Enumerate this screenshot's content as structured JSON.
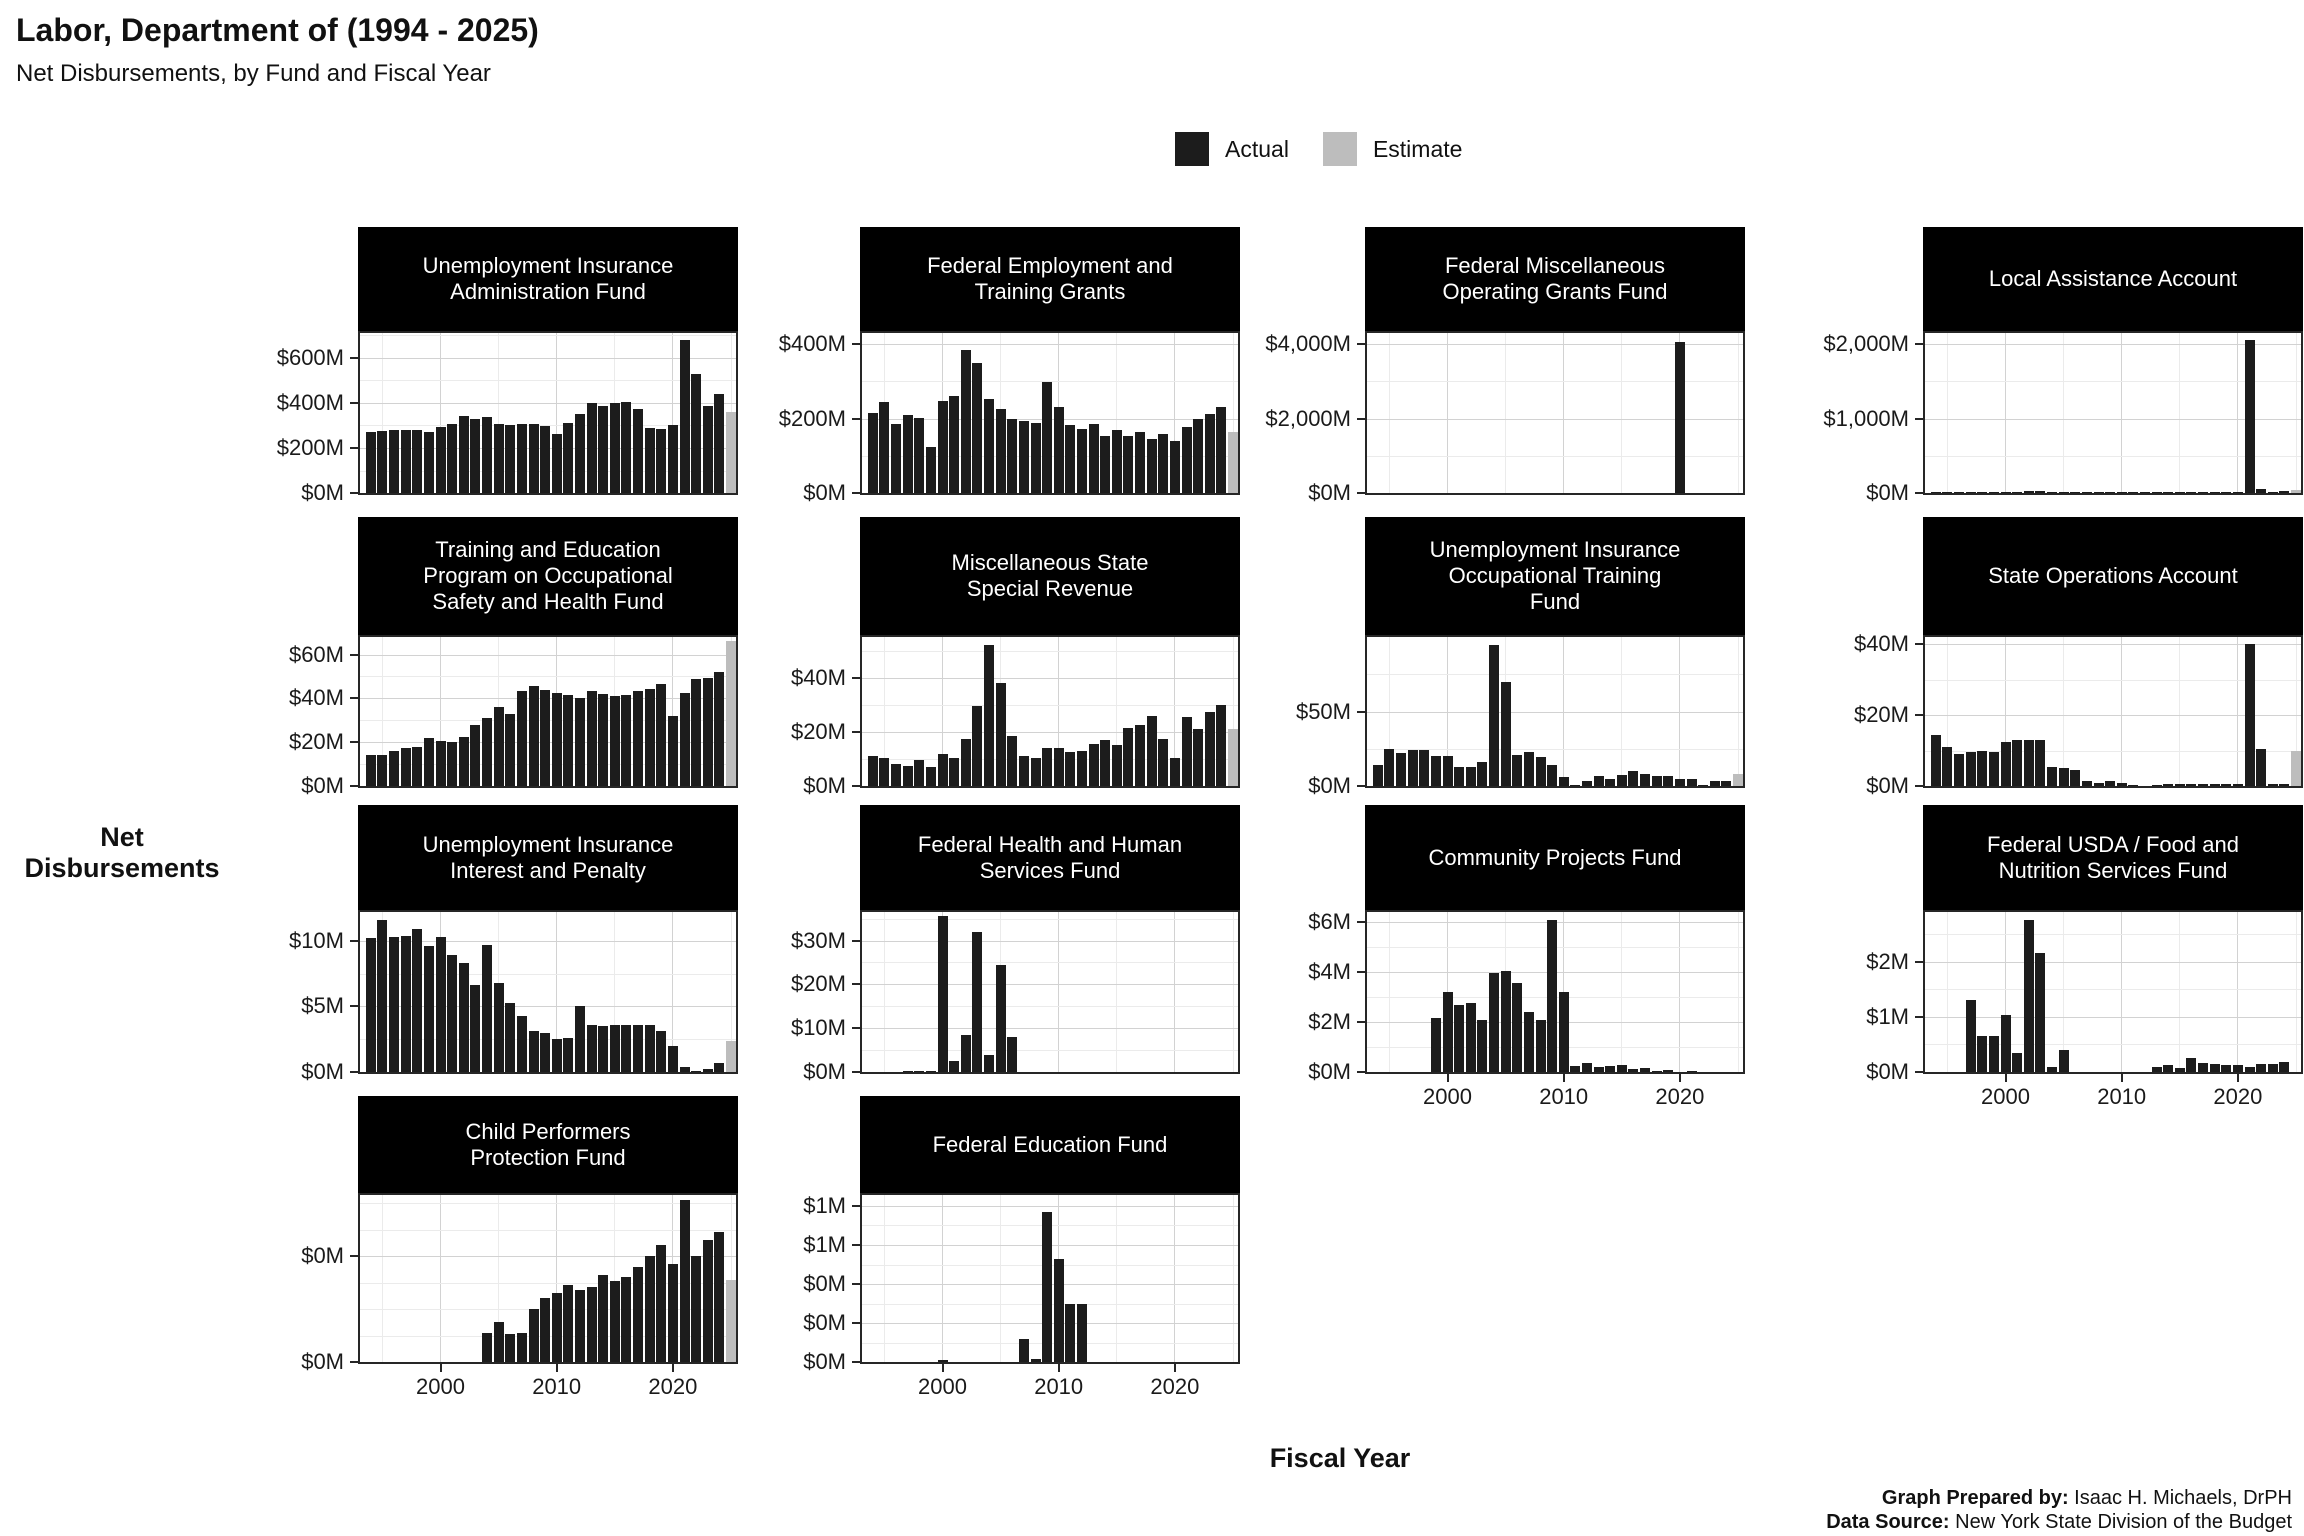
{
  "header": {
    "title": "Labor, Department of (1994 - 2025)",
    "subtitle": "Net Disbursements, by Fund and Fiscal Year"
  },
  "legend": {
    "items": [
      {
        "label": "Actual",
        "color": "#1C1C1C"
      },
      {
        "label": "Estimate",
        "color": "#BDBDBD"
      }
    ]
  },
  "axes": {
    "y_label": "Net Disbursements",
    "x_label": "Fiscal Year"
  },
  "footer": {
    "prepared_by_label": "Graph Prepared by:",
    "prepared_by": " Isaac H. Michaels, DrPH",
    "source_label": "Data Source:",
    "source": " New York State Division of the Budget"
  },
  "x_axis": {
    "start": 1994,
    "end": 2025,
    "ticks": [
      2000,
      2010,
      2020
    ]
  },
  "chart_data": [
    {
      "id": "ui-admin",
      "type": "bar",
      "row": 0,
      "col": 0,
      "title_lines": [
        "Unemployment Insurance",
        "Administration Fund"
      ],
      "y_max": 710,
      "minor": 100,
      "estimate_year": 2025,
      "show_x_labels": false,
      "y_ticks": [
        {
          "v": 0,
          "label": "$0M"
        },
        {
          "v": 200,
          "label": "$200M"
        },
        {
          "v": 400,
          "label": "$400M"
        },
        {
          "v": 600,
          "label": "$600M"
        }
      ],
      "series": {
        "1994": 270,
        "1995": 275,
        "1996": 280,
        "1997": 280,
        "1998": 278,
        "1999": 272,
        "2000": 292,
        "2001": 308,
        "2002": 340,
        "2003": 330,
        "2004": 338,
        "2005": 305,
        "2006": 300,
        "2007": 305,
        "2008": 305,
        "2009": 298,
        "2010": 262,
        "2011": 310,
        "2012": 352,
        "2013": 400,
        "2014": 388,
        "2015": 400,
        "2016": 402,
        "2017": 372,
        "2018": 290,
        "2019": 285,
        "2020": 302,
        "2021": 680,
        "2022": 530,
        "2023": 385,
        "2024": 440,
        "2025": 360
      }
    },
    {
      "id": "fed-employment",
      "type": "bar",
      "row": 0,
      "col": 1,
      "title_lines": [
        "Federal Employment and",
        "Training Grants"
      ],
      "y_max": 430,
      "minor": 100,
      "estimate_year": 2025,
      "show_x_labels": false,
      "y_ticks": [
        {
          "v": 0,
          "label": "$0M"
        },
        {
          "v": 200,
          "label": "$200M"
        },
        {
          "v": 400,
          "label": "$400M"
        }
      ],
      "series": {
        "1994": 215,
        "1995": 245,
        "1996": 185,
        "1997": 210,
        "1998": 203,
        "1999": 125,
        "2000": 248,
        "2001": 260,
        "2002": 385,
        "2003": 350,
        "2004": 253,
        "2005": 225,
        "2006": 198,
        "2007": 193,
        "2008": 188,
        "2009": 298,
        "2010": 230,
        "2011": 183,
        "2012": 172,
        "2013": 185,
        "2014": 153,
        "2015": 170,
        "2016": 152,
        "2017": 165,
        "2018": 145,
        "2019": 160,
        "2020": 140,
        "2021": 178,
        "2022": 198,
        "2023": 213,
        "2024": 230,
        "2025": 163
      }
    },
    {
      "id": "fed-misc-operating",
      "type": "bar",
      "row": 0,
      "col": 2,
      "title_lines": [
        "Federal Miscellaneous",
        "Operating Grants Fund"
      ],
      "y_max": 4300,
      "minor": 1000,
      "estimate_year": null,
      "show_x_labels": false,
      "y_ticks": [
        {
          "v": 0,
          "label": "$0M"
        },
        {
          "v": 2000,
          "label": "$2,000M"
        },
        {
          "v": 4000,
          "label": "$4,000M"
        }
      ],
      "series": {
        "2020": 4050
      }
    },
    {
      "id": "local-assistance",
      "type": "bar",
      "row": 0,
      "col": 3,
      "title_lines": [
        "Local Assistance Account"
      ],
      "y_max": 2150,
      "minor": 500,
      "estimate_year": 2025,
      "show_x_labels": false,
      "y_ticks": [
        {
          "v": 0,
          "label": "$0M"
        },
        {
          "v": 1000,
          "label": "$1,000M"
        },
        {
          "v": 2000,
          "label": "$2,000M"
        }
      ],
      "series": {
        "1994": 4,
        "1995": 4,
        "1996": 4,
        "1997": 4,
        "1998": 4,
        "1999": 4,
        "2000": 5,
        "2001": 8,
        "2002": 25,
        "2003": 33,
        "2004": 6,
        "2005": 5,
        "2006": 5,
        "2007": 5,
        "2008": 5,
        "2009": 5,
        "2010": 4,
        "2011": 4,
        "2012": 4,
        "2013": 4,
        "2014": 4,
        "2015": 4,
        "2016": 4,
        "2017": 4,
        "2018": 4,
        "2019": 12,
        "2020": 8,
        "2021": 2050,
        "2022": 60,
        "2023": 18,
        "2024": 22,
        "2025": 45
      }
    },
    {
      "id": "osh-training",
      "type": "bar",
      "row": 1,
      "col": 0,
      "title_lines": [
        "Training and Education",
        "Program on Occupational",
        "Safety and Health Fund"
      ],
      "y_max": 68,
      "minor": 10,
      "estimate_year": 2025,
      "show_x_labels": false,
      "y_ticks": [
        {
          "v": 0,
          "label": "$0M"
        },
        {
          "v": 20,
          "label": "$20M"
        },
        {
          "v": 40,
          "label": "$40M"
        },
        {
          "v": 60,
          "label": "$60M"
        }
      ],
      "series": {
        "1994": 14,
        "1995": 14,
        "1996": 16,
        "1997": 17.5,
        "1998": 18,
        "1999": 22,
        "2000": 20.5,
        "2001": 20,
        "2002": 22.5,
        "2003": 28,
        "2004": 31,
        "2005": 36,
        "2006": 33,
        "2007": 43.5,
        "2008": 45.5,
        "2009": 44,
        "2010": 42.5,
        "2011": 41.5,
        "2012": 40,
        "2013": 43.5,
        "2014": 42,
        "2015": 41,
        "2016": 41.5,
        "2017": 43.5,
        "2018": 44.5,
        "2019": 46.5,
        "2020": 32,
        "2021": 42.5,
        "2022": 49,
        "2023": 49.5,
        "2024": 52,
        "2025": 66
      }
    },
    {
      "id": "misc-state-special",
      "type": "bar",
      "row": 1,
      "col": 1,
      "title_lines": [
        "Miscellaneous State",
        "Special Revenue"
      ],
      "y_max": 55,
      "minor": 10,
      "estimate_year": 2025,
      "show_x_labels": false,
      "y_ticks": [
        {
          "v": 0,
          "label": "$0M"
        },
        {
          "v": 20,
          "label": "$20M"
        },
        {
          "v": 40,
          "label": "$40M"
        }
      ],
      "series": {
        "1994": 11,
        "1995": 10.5,
        "1996": 8,
        "1997": 7.5,
        "1998": 9.5,
        "1999": 7,
        "2000": 12,
        "2001": 10.5,
        "2002": 17.5,
        "2003": 29.5,
        "2004": 52,
        "2005": 38,
        "2006": 18.5,
        "2007": 11,
        "2008": 10.5,
        "2009": 14,
        "2010": 14,
        "2011": 12.5,
        "2012": 13,
        "2013": 15.5,
        "2014": 17,
        "2015": 15,
        "2016": 21.5,
        "2017": 22.5,
        "2018": 26,
        "2019": 17.5,
        "2020": 10.5,
        "2021": 25.5,
        "2022": 21,
        "2023": 27.5,
        "2024": 30,
        "2025": 21
      }
    },
    {
      "id": "ui-occupational-training",
      "type": "bar",
      "row": 1,
      "col": 2,
      "title_lines": [
        "Unemployment Insurance",
        "Occupational Training",
        "Fund"
      ],
      "y_max": 100,
      "minor": 25,
      "estimate_year": 2025,
      "show_x_labels": false,
      "y_ticks": [
        {
          "v": 0,
          "label": "$0M"
        },
        {
          "v": 50,
          "label": "$50M"
        }
      ],
      "series": {
        "1994": 14,
        "1995": 25,
        "1996": 22,
        "1997": 24,
        "1998": 24,
        "1999": 20,
        "2000": 20,
        "2001": 12.5,
        "2002": 13,
        "2003": 16,
        "2004": 95,
        "2005": 70,
        "2006": 21,
        "2007": 23,
        "2008": 19.5,
        "2009": 14,
        "2010": 6,
        "2011": 1,
        "2012": 3.5,
        "2013": 6.5,
        "2014": 4.5,
        "2015": 7.5,
        "2016": 10,
        "2017": 8,
        "2018": 6.5,
        "2019": 7,
        "2020": 5,
        "2021": 4.5,
        "2022": 1,
        "2023": 3.5,
        "2024": 3.5,
        "2025": 8
      }
    },
    {
      "id": "state-operations",
      "type": "bar",
      "row": 1,
      "col": 3,
      "title_lines": [
        "State Operations Account"
      ],
      "y_max": 42,
      "minor": 10,
      "estimate_year": 2025,
      "show_x_labels": false,
      "y_ticks": [
        {
          "v": 0,
          "label": "$0M"
        },
        {
          "v": 20,
          "label": "$20M"
        },
        {
          "v": 40,
          "label": "$40M"
        }
      ],
      "series": {
        "1994": 14.5,
        "1995": 11,
        "1996": 9,
        "1997": 9.5,
        "1998": 10,
        "1999": 9.5,
        "2000": 12.5,
        "2001": 13,
        "2002": 13,
        "2003": 13,
        "2004": 5.5,
        "2005": 5,
        "2006": 4.5,
        "2007": 1.5,
        "2008": 1,
        "2009": 1.5,
        "2010": 1,
        "2011": 0.3,
        "2013": 0.3,
        "2014": 0.5,
        "2015": 0.5,
        "2016": 0.5,
        "2017": 0.5,
        "2018": 0.5,
        "2019": 0.5,
        "2020": 0.5,
        "2021": 40,
        "2022": 10.5,
        "2023": 0.5,
        "2024": 0.5,
        "2025": 10
      }
    },
    {
      "id": "ui-interest-penalty",
      "type": "bar",
      "row": 2,
      "col": 0,
      "title_lines": [
        "Unemployment Insurance",
        "Interest and Penalty"
      ],
      "y_max": 12.2,
      "minor": 2.5,
      "estimate_year": 2025,
      "show_x_labels": false,
      "y_ticks": [
        {
          "v": 0,
          "label": "$0M"
        },
        {
          "v": 5,
          "label": "$5M"
        },
        {
          "v": 10,
          "label": "$10M"
        }
      ],
      "series": {
        "1994": 10.2,
        "1995": 11.6,
        "1996": 10.3,
        "1997": 10.4,
        "1998": 10.9,
        "1999": 9.6,
        "2000": 10.3,
        "2001": 8.9,
        "2002": 8.3,
        "2003": 6.6,
        "2004": 9.7,
        "2005": 6.8,
        "2006": 5.3,
        "2007": 4.3,
        "2008": 3.1,
        "2009": 3.0,
        "2010": 2.5,
        "2011": 2.6,
        "2012": 5.0,
        "2013": 3.6,
        "2014": 3.5,
        "2015": 3.6,
        "2016": 3.6,
        "2017": 3.6,
        "2018": 3.6,
        "2019": 3.1,
        "2020": 2.0,
        "2021": 0.4,
        "2022": 0.1,
        "2023": 0.2,
        "2024": 0.7,
        "2025": 2.4
      }
    },
    {
      "id": "fed-hhs",
      "type": "bar",
      "row": 2,
      "col": 1,
      "title_lines": [
        "Federal Health and Human",
        "Services Fund"
      ],
      "y_max": 36.5,
      "minor": 5,
      "estimate_year": null,
      "show_x_labels": false,
      "y_ticks": [
        {
          "v": 0,
          "label": "$0M"
        },
        {
          "v": 10,
          "label": "$10M"
        },
        {
          "v": 20,
          "label": "$20M"
        },
        {
          "v": 30,
          "label": "$30M"
        }
      ],
      "series": {
        "1997": 0.2,
        "1998": 0.3,
        "1999": 0.2,
        "2000": 35.5,
        "2001": 2.5,
        "2002": 8.5,
        "2003": 32,
        "2004": 4,
        "2005": 24.5,
        "2006": 8
      }
    },
    {
      "id": "community-projects",
      "type": "bar",
      "row": 2,
      "col": 2,
      "title_lines": [
        "Community Projects Fund"
      ],
      "y_max": 6.4,
      "minor": 1,
      "estimate_year": null,
      "show_x_labels": true,
      "y_ticks": [
        {
          "v": 0,
          "label": "$0M"
        },
        {
          "v": 2,
          "label": "$2M"
        },
        {
          "v": 4,
          "label": "$4M"
        },
        {
          "v": 6,
          "label": "$6M"
        }
      ],
      "series": {
        "1999": 2.15,
        "2000": 3.2,
        "2001": 2.7,
        "2002": 2.75,
        "2003": 2.1,
        "2004": 3.95,
        "2005": 4.05,
        "2006": 3.55,
        "2007": 2.4,
        "2008": 2.1,
        "2009": 6.1,
        "2010": 3.2,
        "2011": 0.25,
        "2012": 0.35,
        "2013": 0.2,
        "2014": 0.25,
        "2015": 0.3,
        "2016": 0.12,
        "2017": 0.15,
        "2018": 0.06,
        "2019": 0.1,
        "2021": 0.04
      }
    },
    {
      "id": "fed-usda-fns",
      "type": "bar",
      "row": 2,
      "col": 3,
      "title_lines": [
        "Federal USDA / Food and",
        "Nutrition Services Fund"
      ],
      "y_max": 2.9,
      "minor": 0.5,
      "estimate_year": null,
      "show_x_labels": true,
      "y_ticks": [
        {
          "v": 0,
          "label": "$0M"
        },
        {
          "v": 1,
          "label": "$1M"
        },
        {
          "v": 2,
          "label": "$2M"
        }
      ],
      "series": {
        "1997": 1.3,
        "1998": 0.65,
        "1999": 0.65,
        "2000": 1.03,
        "2001": 0.35,
        "2002": 2.75,
        "2003": 2.15,
        "2004": 0.1,
        "2005": 0.4,
        "2013": 0.1,
        "2014": 0.12,
        "2015": 0.08,
        "2016": 0.25,
        "2017": 0.17,
        "2018": 0.15,
        "2019": 0.13,
        "2020": 0.13,
        "2021": 0.1,
        "2022": 0.15,
        "2023": 0.15,
        "2024": 0.18
      }
    },
    {
      "id": "child-performers",
      "type": "bar",
      "row": 3,
      "col": 0,
      "title_lines": [
        "Child Performers",
        "Protection Fund"
      ],
      "y_max": 0.63,
      "minor": 0.1,
      "estimate_year": 2025,
      "show_x_labels": true,
      "y_ticks": [
        {
          "v": 0,
          "label": "$0M"
        },
        {
          "v": 0.4,
          "label": "$0M"
        }
      ],
      "series": {
        "2004": 0.11,
        "2005": 0.15,
        "2006": 0.105,
        "2007": 0.11,
        "2008": 0.2,
        "2009": 0.24,
        "2010": 0.26,
        "2011": 0.29,
        "2012": 0.27,
        "2013": 0.285,
        "2014": 0.33,
        "2015": 0.305,
        "2016": 0.32,
        "2017": 0.36,
        "2018": 0.4,
        "2019": 0.44,
        "2020": 0.37,
        "2021": 0.61,
        "2022": 0.4,
        "2023": 0.46,
        "2024": 0.49,
        "2025": 0.31
      }
    },
    {
      "id": "fed-education",
      "type": "bar",
      "row": 3,
      "col": 1,
      "title_lines": [
        "Federal Education Fund"
      ],
      "y_max": 1.07,
      "minor": 0.125,
      "estimate_year": null,
      "show_x_labels": true,
      "y_ticks": [
        {
          "v": 0,
          "label": "$0M"
        },
        {
          "v": 0.25,
          "label": "$0M"
        },
        {
          "v": 0.5,
          "label": "$0M"
        },
        {
          "v": 0.75,
          "label": "$1M"
        },
        {
          "v": 1,
          "label": "$1M"
        }
      ],
      "series": {
        "2000": 0.01,
        "2007": 0.145,
        "2008": 0.02,
        "2009": 0.96,
        "2010": 0.66,
        "2011": 0.375,
        "2012": 0.375
      }
    }
  ]
}
